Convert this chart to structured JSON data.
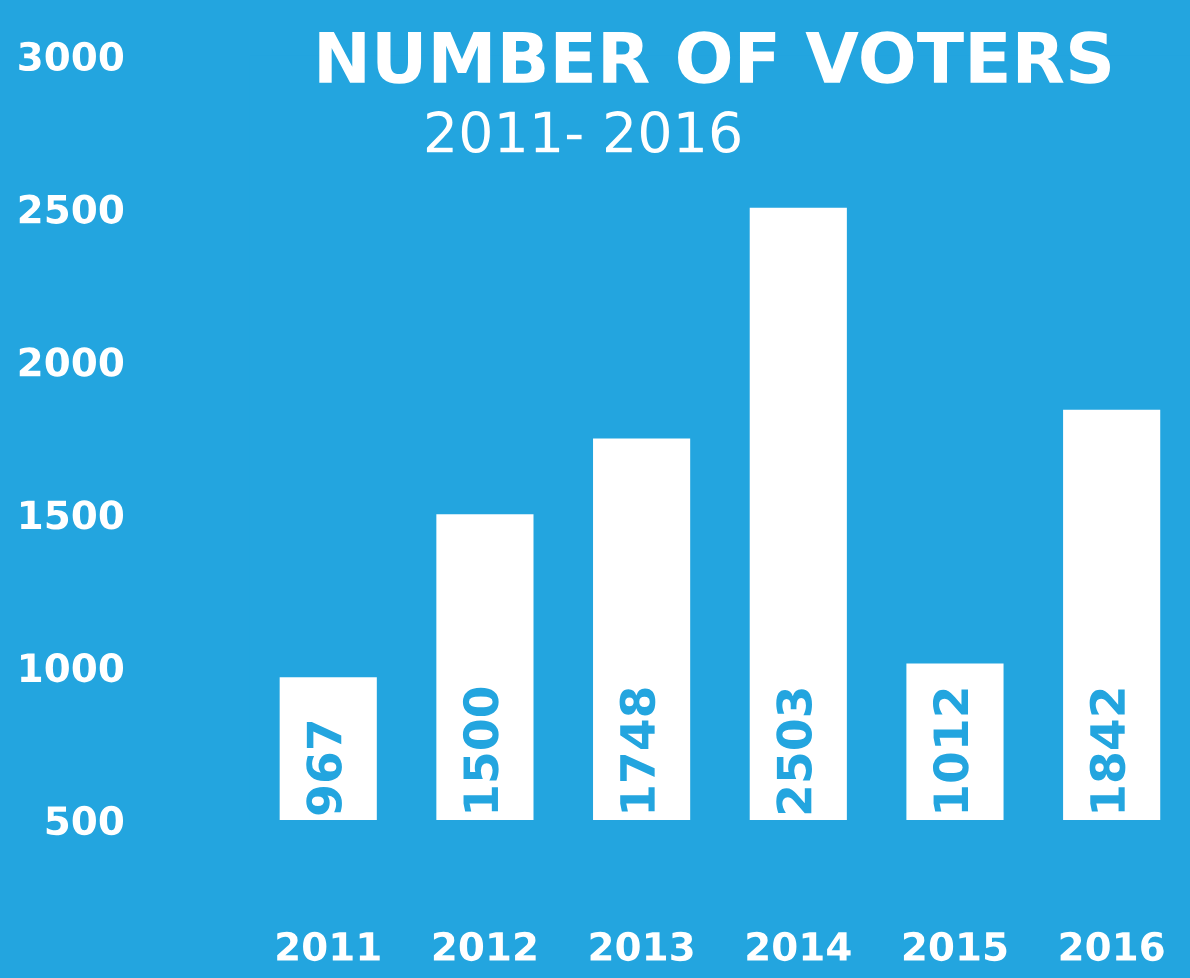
{
  "chart_data": {
    "type": "bar",
    "title": "NUMBER OF VOTERS",
    "subtitle": "2011- 2016",
    "categories": [
      "2011",
      "2012",
      "2013",
      "2014",
      "2015",
      "2016"
    ],
    "values": [
      967,
      1500,
      1748,
      2503,
      1012,
      1842
    ],
    "color": "#ffffff",
    "ylim": [
      500,
      3000
    ],
    "yticks": [
      500,
      1000,
      1500,
      2000,
      2500,
      3000
    ],
    "data_labels": true,
    "grid": false
  }
}
